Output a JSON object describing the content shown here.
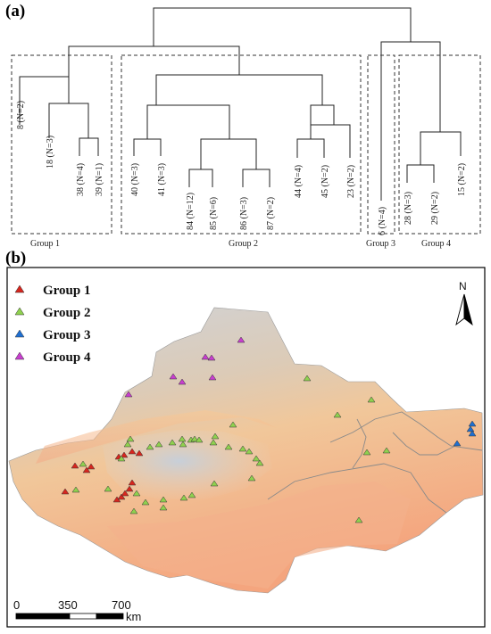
{
  "panel_a": {
    "label": "(a)",
    "leaves": [
      {
        "id": "8",
        "label": "8 (N=2)"
      },
      {
        "id": "18",
        "label": "18 (N=3)"
      },
      {
        "id": "38",
        "label": "38 (N=4)"
      },
      {
        "id": "39",
        "label": "39 (N=1)"
      },
      {
        "id": "40",
        "label": "40 (N=3)"
      },
      {
        "id": "41",
        "label": "41 (N=3)"
      },
      {
        "id": "84",
        "label": "84 (N=12)"
      },
      {
        "id": "85",
        "label": "85 (N=6)"
      },
      {
        "id": "86",
        "label": "86 (N=3)"
      },
      {
        "id": "87",
        "label": "87 (N=2)"
      },
      {
        "id": "44",
        "label": "44 (N=4)"
      },
      {
        "id": "45",
        "label": "45 (N=2)"
      },
      {
        "id": "23",
        "label": "23 (N=2)"
      },
      {
        "id": "6",
        "label": "6 (N=4)"
      },
      {
        "id": "28",
        "label": "28 (N=3)"
      },
      {
        "id": "29",
        "label": "29 (N=2)"
      },
      {
        "id": "15",
        "label": "15 (N=2)"
      }
    ],
    "groups": [
      {
        "id": "g1",
        "label": "Group 1",
        "members": [
          "8",
          "18",
          "38",
          "39"
        ]
      },
      {
        "id": "g2",
        "label": "Group 2",
        "members": [
          "40",
          "41",
          "84",
          "85",
          "86",
          "87",
          "44",
          "45",
          "23"
        ]
      },
      {
        "id": "g3",
        "label": "Group 3",
        "members": [
          "6"
        ]
      },
      {
        "id": "g4",
        "label": "Group 4",
        "members": [
          "28",
          "29",
          "15"
        ]
      }
    ]
  },
  "panel_b": {
    "label": "(b)",
    "legend": [
      {
        "label": "Group 1",
        "color": "#d7261e"
      },
      {
        "label": "Group 2",
        "color": "#8fd14f"
      },
      {
        "label": "Group 3",
        "color": "#1f6fd1"
      },
      {
        "label": "Group 4",
        "color": "#c83ecf"
      }
    ],
    "north_label": "N",
    "scale_bar": {
      "ticks": [
        "0",
        "350",
        "700"
      ],
      "unit": "km"
    }
  }
}
